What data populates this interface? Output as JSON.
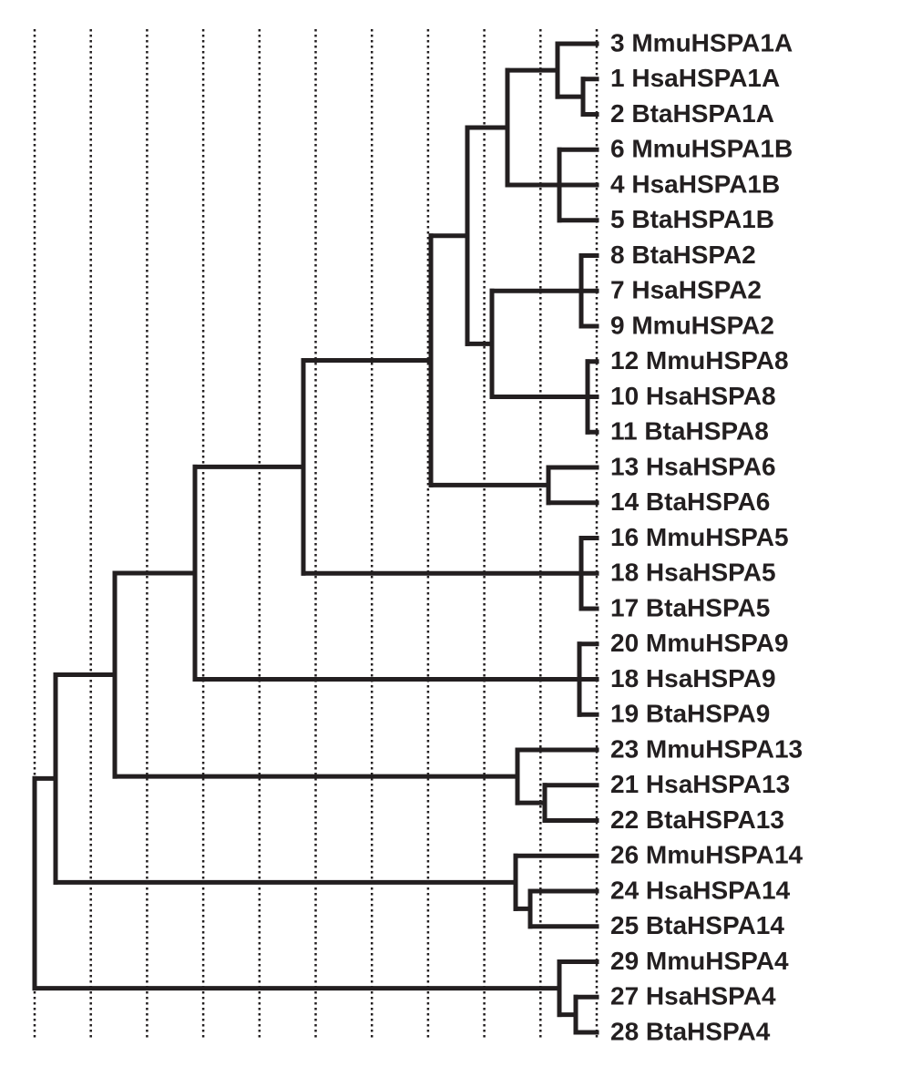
{
  "leaves": [
    "3 MmuHSPA1A",
    "1 HsaHSPA1A",
    "2 BtaHSPA1A",
    "6 MmuHSPA1B",
    "4 HsaHSPA1B",
    "5 BtaHSPA1B",
    "8 BtaHSPA2",
    "7 HsaHSPA2",
    "9 MmuHSPA2",
    "12 MmuHSPA8",
    "10 HsaHSPA8",
    "11 BtaHSPA8",
    "13 HsaHSPA6",
    "14 BtaHSPA6",
    "16 MmuHSPA5",
    "18 HsaHSPA5",
    "17 BtaHSPA5",
    "20 MmuHSPA9",
    "18 HsaHSPA9",
    "19 BtaHSPA9",
    "23 MmuHSPA13",
    "21 HsaHSPA13",
    "22 BtaHSPA13",
    "26 MmuHSPA14",
    "24 HsaHSPA14",
    "25 BtaHSPA14",
    "29 MmuHSPA4",
    "27 HsaHSPA4",
    "28 BtaHSPA4"
  ]
}
